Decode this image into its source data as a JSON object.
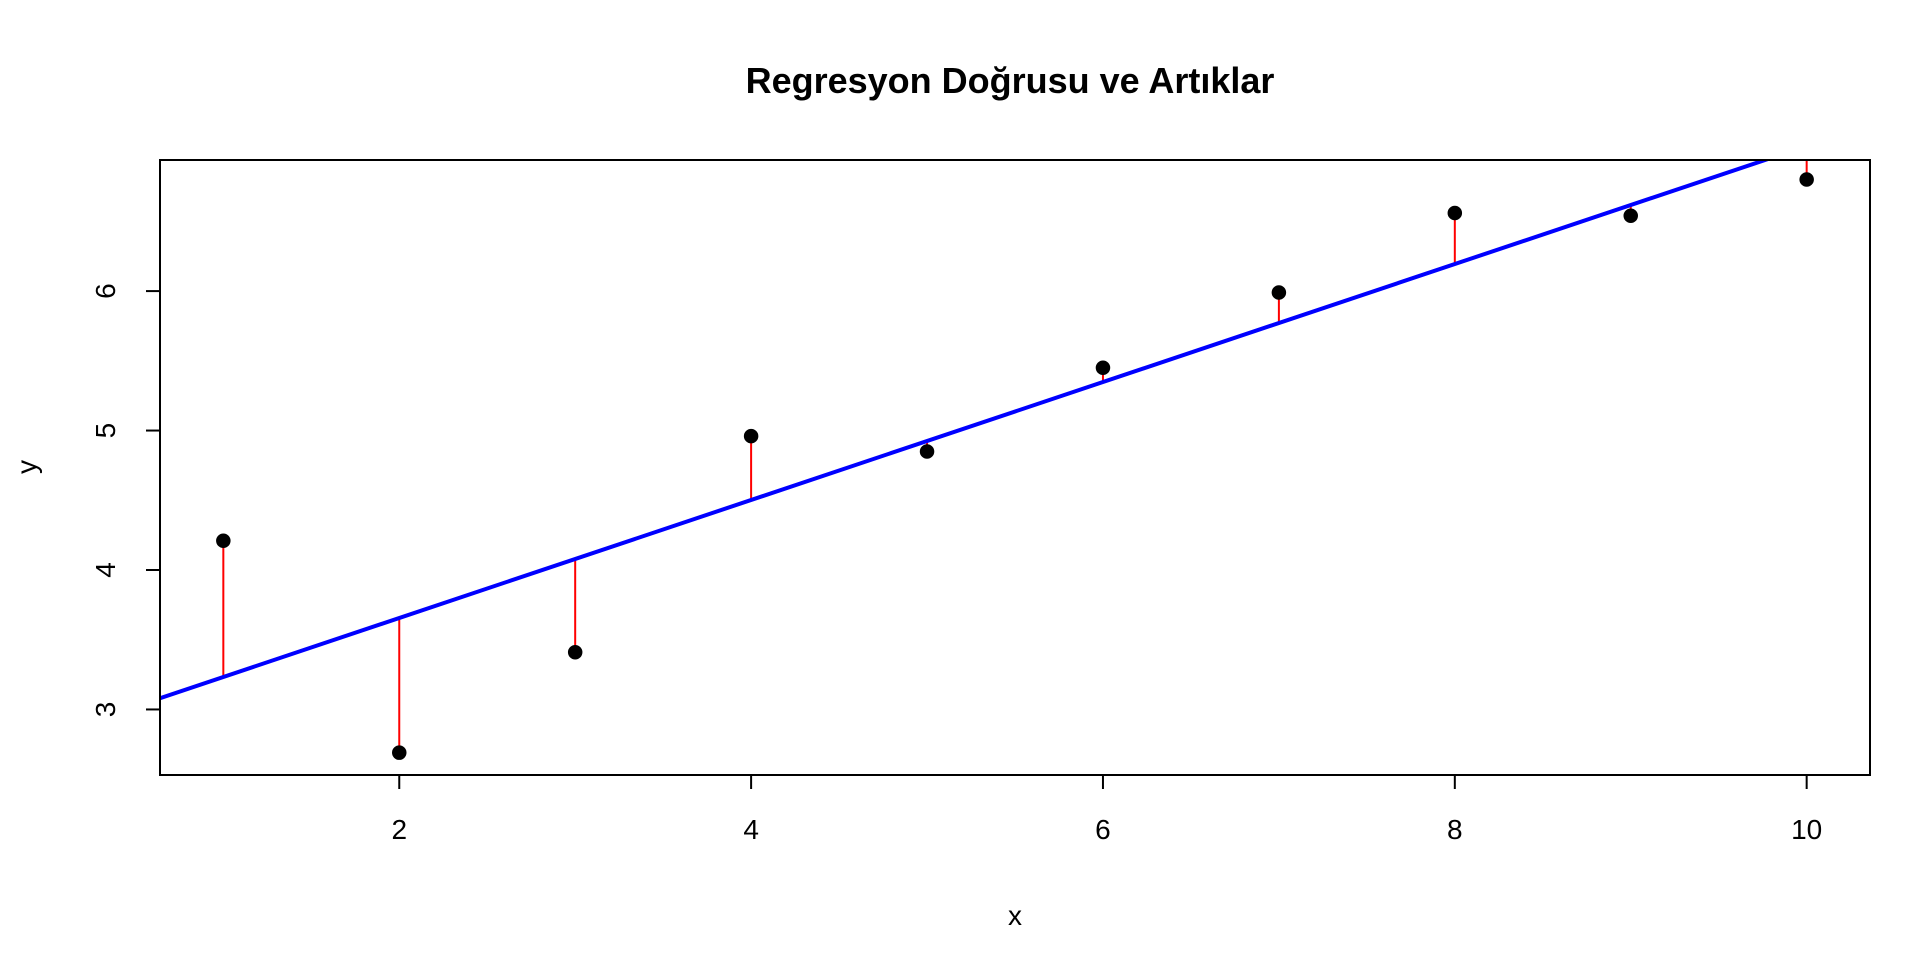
{
  "chart_data": {
    "type": "scatter",
    "title": "Regresyon Doğrusu ve Artıklar",
    "xlabel": "x",
    "ylabel": "y",
    "xlim": [
      0.64,
      10.36
    ],
    "ylim": [
      2.53,
      6.94
    ],
    "x_ticks": [
      2,
      4,
      6,
      8,
      10
    ],
    "y_ticks": [
      3,
      4,
      5,
      6
    ],
    "x_tick_labels": [
      "2",
      "4",
      "6",
      "8",
      "10"
    ],
    "y_tick_labels": [
      "3",
      "4",
      "5",
      "6"
    ],
    "grid": false,
    "legend": "none",
    "points": {
      "x": [
        1,
        2,
        3,
        4,
        5,
        6,
        7,
        8,
        9,
        10
      ],
      "y": [
        4.21,
        2.69,
        3.41,
        4.96,
        4.85,
        5.45,
        5.99,
        6.56,
        6.54,
        6.8
      ]
    },
    "regression_line": {
      "intercept": 2.81,
      "slope": 0.423,
      "color": "#0000ff"
    },
    "residual_color": "#ff0000",
    "point_color": "#000000"
  }
}
